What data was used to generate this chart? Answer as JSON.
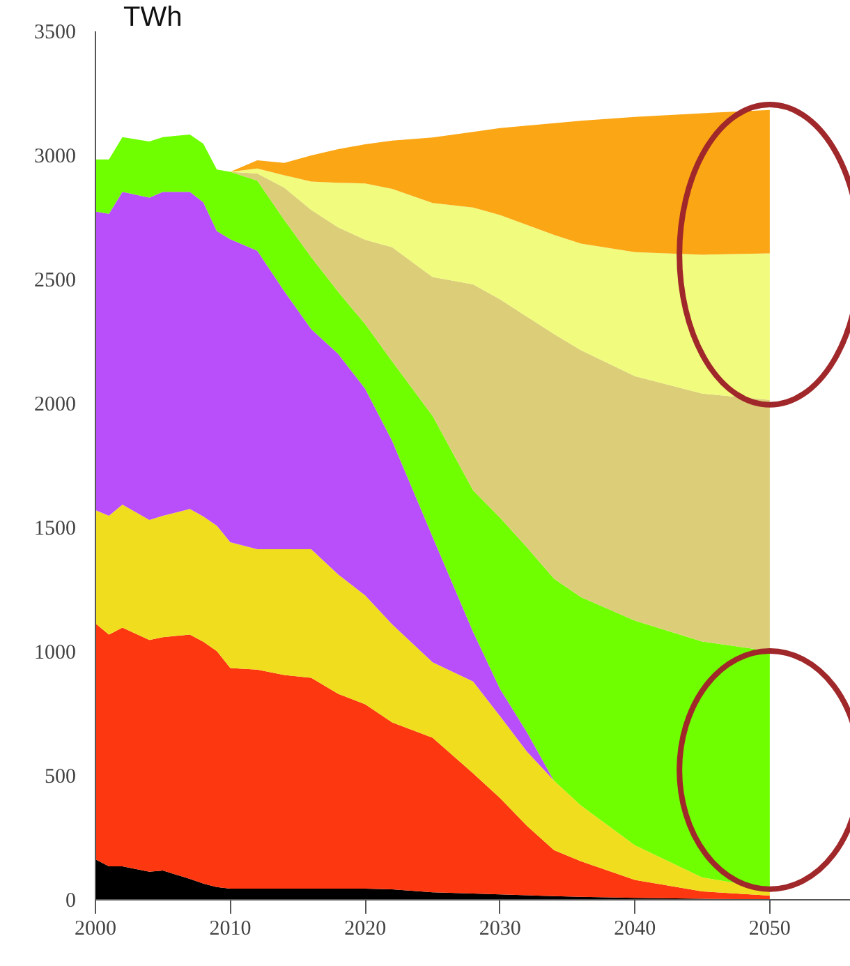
{
  "chart_data": {
    "type": "area",
    "stacked": true,
    "ylabel": "TWh",
    "x": [
      2000,
      2001,
      2002,
      2004,
      2005,
      2007,
      2008,
      2009,
      2010,
      2012,
      2014,
      2016,
      2018,
      2020,
      2022,
      2025,
      2028,
      2030,
      2032,
      2034,
      2036,
      2040,
      2045,
      2050
    ],
    "series": [
      {
        "color": "#000000",
        "values": [
          163,
          135,
          135,
          113,
          118,
          84,
          65,
          51,
          45,
          45,
          45,
          45,
          45,
          45,
          42,
          30,
          25,
          22,
          18,
          15,
          12,
          8,
          4,
          2
        ]
      },
      {
        "color": "#fd370f",
        "values": [
          951,
          934,
          962,
          934,
          940,
          985,
          975,
          951,
          889,
          883,
          861,
          850,
          785,
          743,
          673,
          623,
          485,
          388,
          280,
          185,
          143,
          72,
          30,
          15
        ]
      },
      {
        "color": "#f0de1e",
        "values": [
          456,
          479,
          496,
          484,
          490,
          506,
          505,
          506,
          507,
          485,
          507,
          518,
          481,
          439,
          395,
          304,
          370,
          330,
          299,
          280,
          225,
          140,
          56,
          28
        ]
      },
      {
        "color": "#b94ffa",
        "values": [
          1204,
          1217,
          1260,
          1299,
          1305,
          1278,
          1266,
          1187,
          1221,
          1203,
          1040,
          887,
          889,
          833,
          740,
          506,
          200,
          110,
          78,
          0,
          0,
          0,
          0,
          0
        ]
      },
      {
        "color": "#6fff00",
        "values": [
          210,
          219,
          221,
          226,
          221,
          231,
          236,
          248,
          272,
          282,
          287,
          290,
          250,
          260,
          320,
          487,
          570,
          690,
          745,
          814,
          840,
          905,
          951,
          957
        ]
      },
      {
        "color": "#dccd78",
        "values": [
          0,
          0,
          0,
          0,
          0,
          0,
          0,
          0,
          0,
          29,
          130,
          190,
          260,
          340,
          460,
          560,
          830,
          880,
          930,
          986,
          995,
          985,
          999,
          1013
        ]
      },
      {
        "color": "#f1fb7d",
        "values": [
          0,
          0,
          0,
          0,
          0,
          0,
          0,
          0,
          0,
          20,
          50,
          115,
          180,
          227,
          235,
          298,
          310,
          340,
          370,
          400,
          430,
          500,
          560,
          590
        ]
      },
      {
        "color": "#fba614",
        "values": [
          0,
          0,
          0,
          0,
          0,
          0,
          0,
          0,
          0,
          33,
          50,
          105,
          135,
          158,
          195,
          264,
          305,
          350,
          400,
          450,
          495,
          545,
          570,
          578
        ]
      }
    ],
    "xlim": [
      2000,
      2056
    ],
    "xticks": [
      2000,
      2010,
      2020,
      2030,
      2040,
      2050
    ],
    "ylim": [
      0,
      3500
    ],
    "yticks": [
      0,
      500,
      1000,
      1500,
      2000,
      2500,
      3000,
      3500
    ]
  }
}
